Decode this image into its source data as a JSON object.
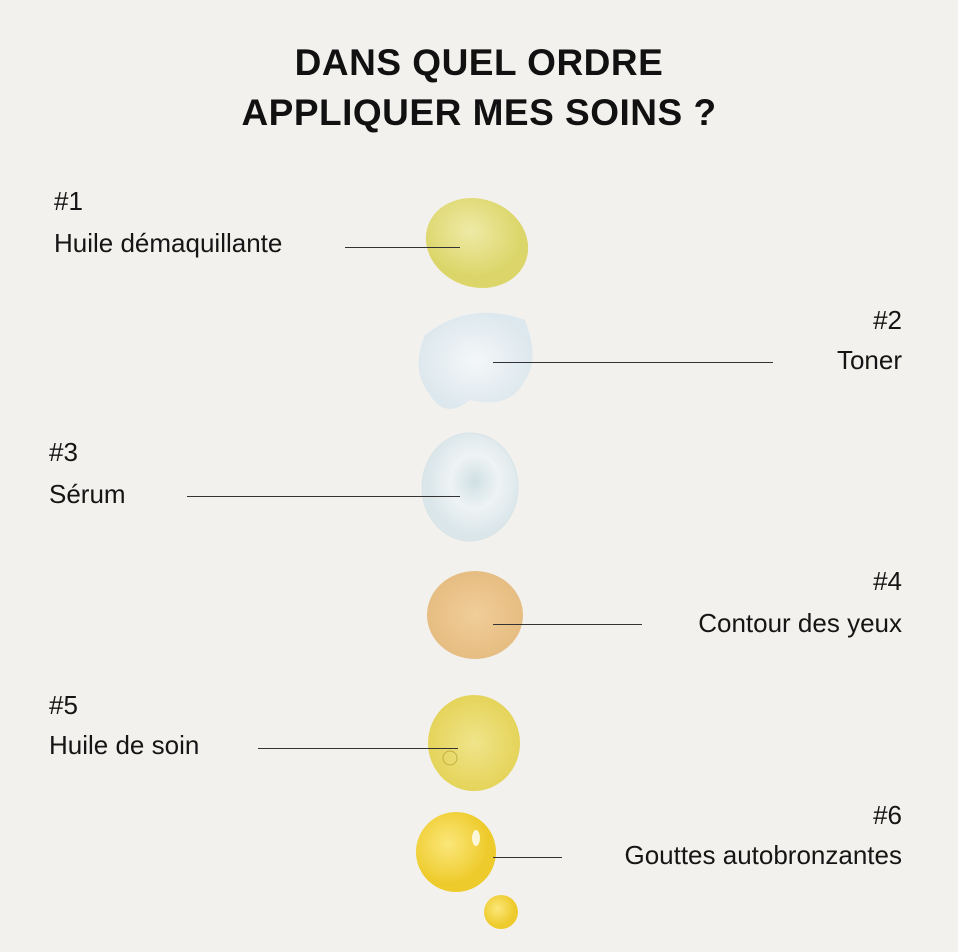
{
  "title": {
    "line1": "DANS QUEL ORDRE",
    "line2": "APPLIQUER MES SOINS ?"
  },
  "steps": [
    {
      "number": "#1",
      "label": "Huile démaquillante",
      "color": "#e6e08a"
    },
    {
      "number": "#2",
      "label": "Toner",
      "color": "#e6eef2"
    },
    {
      "number": "#3",
      "label": "Sérum",
      "color": "#e3ecef"
    },
    {
      "number": "#4",
      "label": "Contour des yeux",
      "color": "#edc68f"
    },
    {
      "number": "#5",
      "label": "Huile de soin",
      "color": "#ede27a"
    },
    {
      "number": "#6",
      "label": "Gouttes autobronzantes",
      "color": "#f3d84a"
    }
  ]
}
